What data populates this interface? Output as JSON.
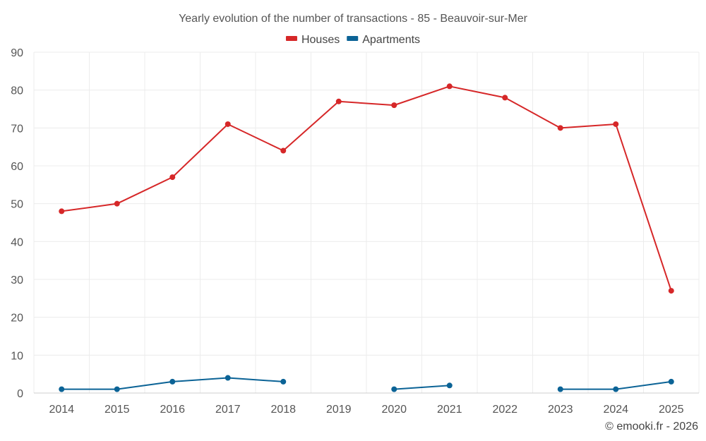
{
  "chart_data": {
    "type": "line",
    "title": "Yearly evolution of the number of transactions - 85 - Beauvoir-sur-Mer",
    "categories": [
      "2014",
      "2015",
      "2016",
      "2017",
      "2018",
      "2019",
      "2020",
      "2021",
      "2022",
      "2023",
      "2024",
      "2025"
    ],
    "ylim": [
      0,
      90
    ],
    "yticks": [
      0,
      10,
      20,
      30,
      40,
      50,
      60,
      70,
      80,
      90
    ],
    "grid": true,
    "legend_position": "top-center",
    "series": [
      {
        "name": "Houses",
        "color": "#d62728",
        "values": [
          48,
          50,
          57,
          71,
          64,
          77,
          76,
          81,
          78,
          70,
          71,
          27
        ]
      },
      {
        "name": "Apartments",
        "color": "#0b6396",
        "values": [
          1,
          1,
          3,
          4,
          3,
          null,
          1,
          2,
          null,
          1,
          1,
          3
        ]
      }
    ]
  },
  "credit": "© emooki.fr - 2026"
}
